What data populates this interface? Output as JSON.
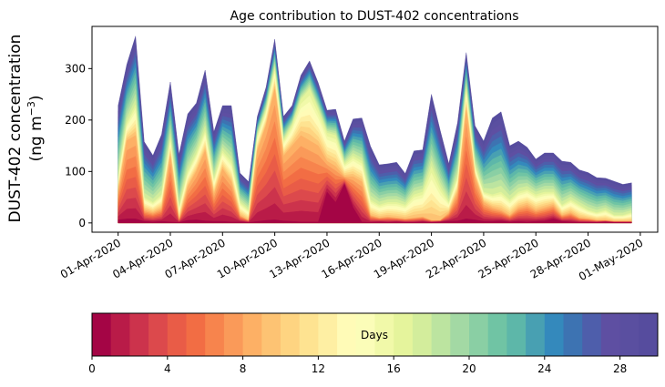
{
  "chart_data": {
    "type": "area",
    "stacked": true,
    "title": "Age contribution to DUST-402 concentrations",
    "ylabel_line1": "DUST-402 concentration",
    "ylabel_line2_prefix": "(ng m",
    "ylabel_line2_sup": "−3",
    "ylabel_line2_suffix": ")",
    "xlabel": "",
    "ylim": [
      -18,
      382
    ],
    "yticks": [
      0,
      100,
      200,
      300
    ],
    "ytick_labels": [
      "0",
      "100",
      "200",
      "300"
    ],
    "x_unit": "days since 01-Apr-2020",
    "xlim": [
      -1.5,
      31
    ],
    "xticks": [
      0,
      3,
      6,
      9,
      12,
      15,
      18,
      21,
      24,
      27,
      30
    ],
    "xtick_labels": [
      "01-Apr-2020",
      "04-Apr-2020",
      "07-Apr-2020",
      "10-Apr-2020",
      "13-Apr-2020",
      "16-Apr-2020",
      "19-Apr-2020",
      "22-Apr-2020",
      "25-Apr-2020",
      "28-Apr-2020",
      "01-May-2020"
    ],
    "x": [
      0,
      0.5,
      1,
      1.5,
      2,
      2.5,
      3,
      3.5,
      4,
      4.5,
      5,
      5.5,
      6,
      6.5,
      7,
      7.5,
      8,
      8.5,
      9,
      9.5,
      10,
      10.5,
      11,
      11.5,
      12,
      12.5,
      13,
      13.5,
      14,
      14.5,
      15,
      15.5,
      16,
      16.5,
      17,
      17.5,
      18,
      18.5,
      19,
      19.5,
      20,
      20.5,
      21,
      21.5,
      22,
      22.5,
      23,
      23.5,
      24,
      24.5,
      25,
      25.5,
      26,
      26.5,
      27,
      27.5,
      28,
      28.5,
      29,
      29.5
    ],
    "total": [
      228,
      308,
      363,
      158,
      131,
      172,
      274,
      133,
      212,
      233,
      297,
      177,
      228,
      228,
      97,
      80,
      207,
      264,
      357,
      207,
      228,
      287,
      315,
      272,
      219,
      221,
      159,
      202,
      204,
      149,
      113,
      115,
      118,
      96,
      140,
      142,
      250,
      180,
      115,
      195,
      331,
      189,
      159,
      204,
      216,
      150,
      159,
      147,
      124,
      136,
      136,
      120,
      118,
      103,
      98,
      88,
      87,
      81,
      75,
      78
    ],
    "young_ages_0_8_cumulative": [
      60,
      160,
      170,
      25,
      20,
      28,
      130,
      5,
      70,
      100,
      140,
      55,
      105,
      80,
      15,
      5,
      140,
      190,
      260,
      130,
      150,
      170,
      160,
      150,
      120,
      110,
      90,
      90,
      80,
      15,
      10,
      12,
      10,
      8,
      10,
      12,
      5,
      5,
      20,
      60,
      220,
      90,
      40,
      30,
      25,
      15,
      30,
      35,
      25,
      30,
      35,
      15,
      20,
      10,
      8,
      5,
      5,
      3,
      3,
      3
    ],
    "mid_ages_0_16_cumulative": [
      90,
      195,
      230,
      50,
      40,
      55,
      165,
      30,
      100,
      135,
      180,
      85,
      140,
      120,
      40,
      25,
      170,
      220,
      300,
      160,
      190,
      240,
      260,
      220,
      175,
      170,
      115,
      130,
      120,
      45,
      35,
      40,
      40,
      35,
      55,
      60,
      110,
      70,
      40,
      90,
      260,
      110,
      60,
      55,
      60,
      45,
      60,
      65,
      55,
      60,
      60,
      35,
      45,
      35,
      25,
      20,
      25,
      15,
      15,
      20
    ],
    "age0_values": [
      6,
      8,
      8,
      3,
      2,
      3,
      2,
      1,
      5,
      6,
      4,
      3,
      3,
      2,
      2,
      1,
      3,
      5,
      6,
      4,
      3,
      2,
      2,
      2,
      60,
      40,
      75,
      30,
      2,
      1,
      2,
      1,
      2,
      1,
      1,
      2,
      1,
      2,
      3,
      4,
      8,
      6,
      3,
      3,
      4,
      2,
      3,
      2,
      3,
      4,
      8,
      3,
      2,
      1,
      1,
      1,
      2,
      1,
      1,
      1
    ],
    "series_names": [
      "Age 0 d",
      "Age 1 d",
      "Age 2 d",
      "Age 3 d",
      "Age 4 d",
      "Age 5 d",
      "Age 6 d",
      "Age 7 d",
      "Age 8 d",
      "Age 9 d",
      "Age 10 d",
      "Age 11 d",
      "Age 12 d",
      "Age 13 d",
      "Age 14 d",
      "Age 15 d",
      "Age 16 d",
      "Age 17 d",
      "Age 18 d",
      "Age 19 d",
      "Age 20 d",
      "Age 21 d",
      "Age 22 d",
      "Age 23 d",
      "Age 24 d",
      "Age 25 d",
      "Age 26 d",
      "Age 27 d",
      "Age 28 d",
      "Age 29 d"
    ],
    "layer_colors": [
      "#a40545",
      "#b91b48",
      "#cc334c",
      "#dc494c",
      "#e95c47",
      "#f26d44",
      "#f7844d",
      "#fa9a59",
      "#fdb065",
      "#fdc373",
      "#fed481",
      "#fee391",
      "#feefa3",
      "#fffbb7",
      "#fbfdb8",
      "#f1f9a9",
      "#e5f49c",
      "#d3ed9c",
      "#bce4a0",
      "#a3d9a4",
      "#8acfa4",
      "#70c4a4",
      "#5db7a9",
      "#48a0b2",
      "#3489bc",
      "#3d73b2",
      "#4e5eab",
      "#5e4fa2",
      "#5a4fa0",
      "#564c9e"
    ],
    "grid": false,
    "colorbar": {
      "label": "Days",
      "range": [
        0,
        30
      ],
      "levels": 30,
      "ticks": [
        0,
        4,
        8,
        12,
        16,
        20,
        24,
        28
      ],
      "tick_labels": [
        "0",
        "4",
        "8",
        "12",
        "16",
        "20",
        "24",
        "28"
      ],
      "orientation": "horizontal",
      "placement": "bottom"
    }
  }
}
